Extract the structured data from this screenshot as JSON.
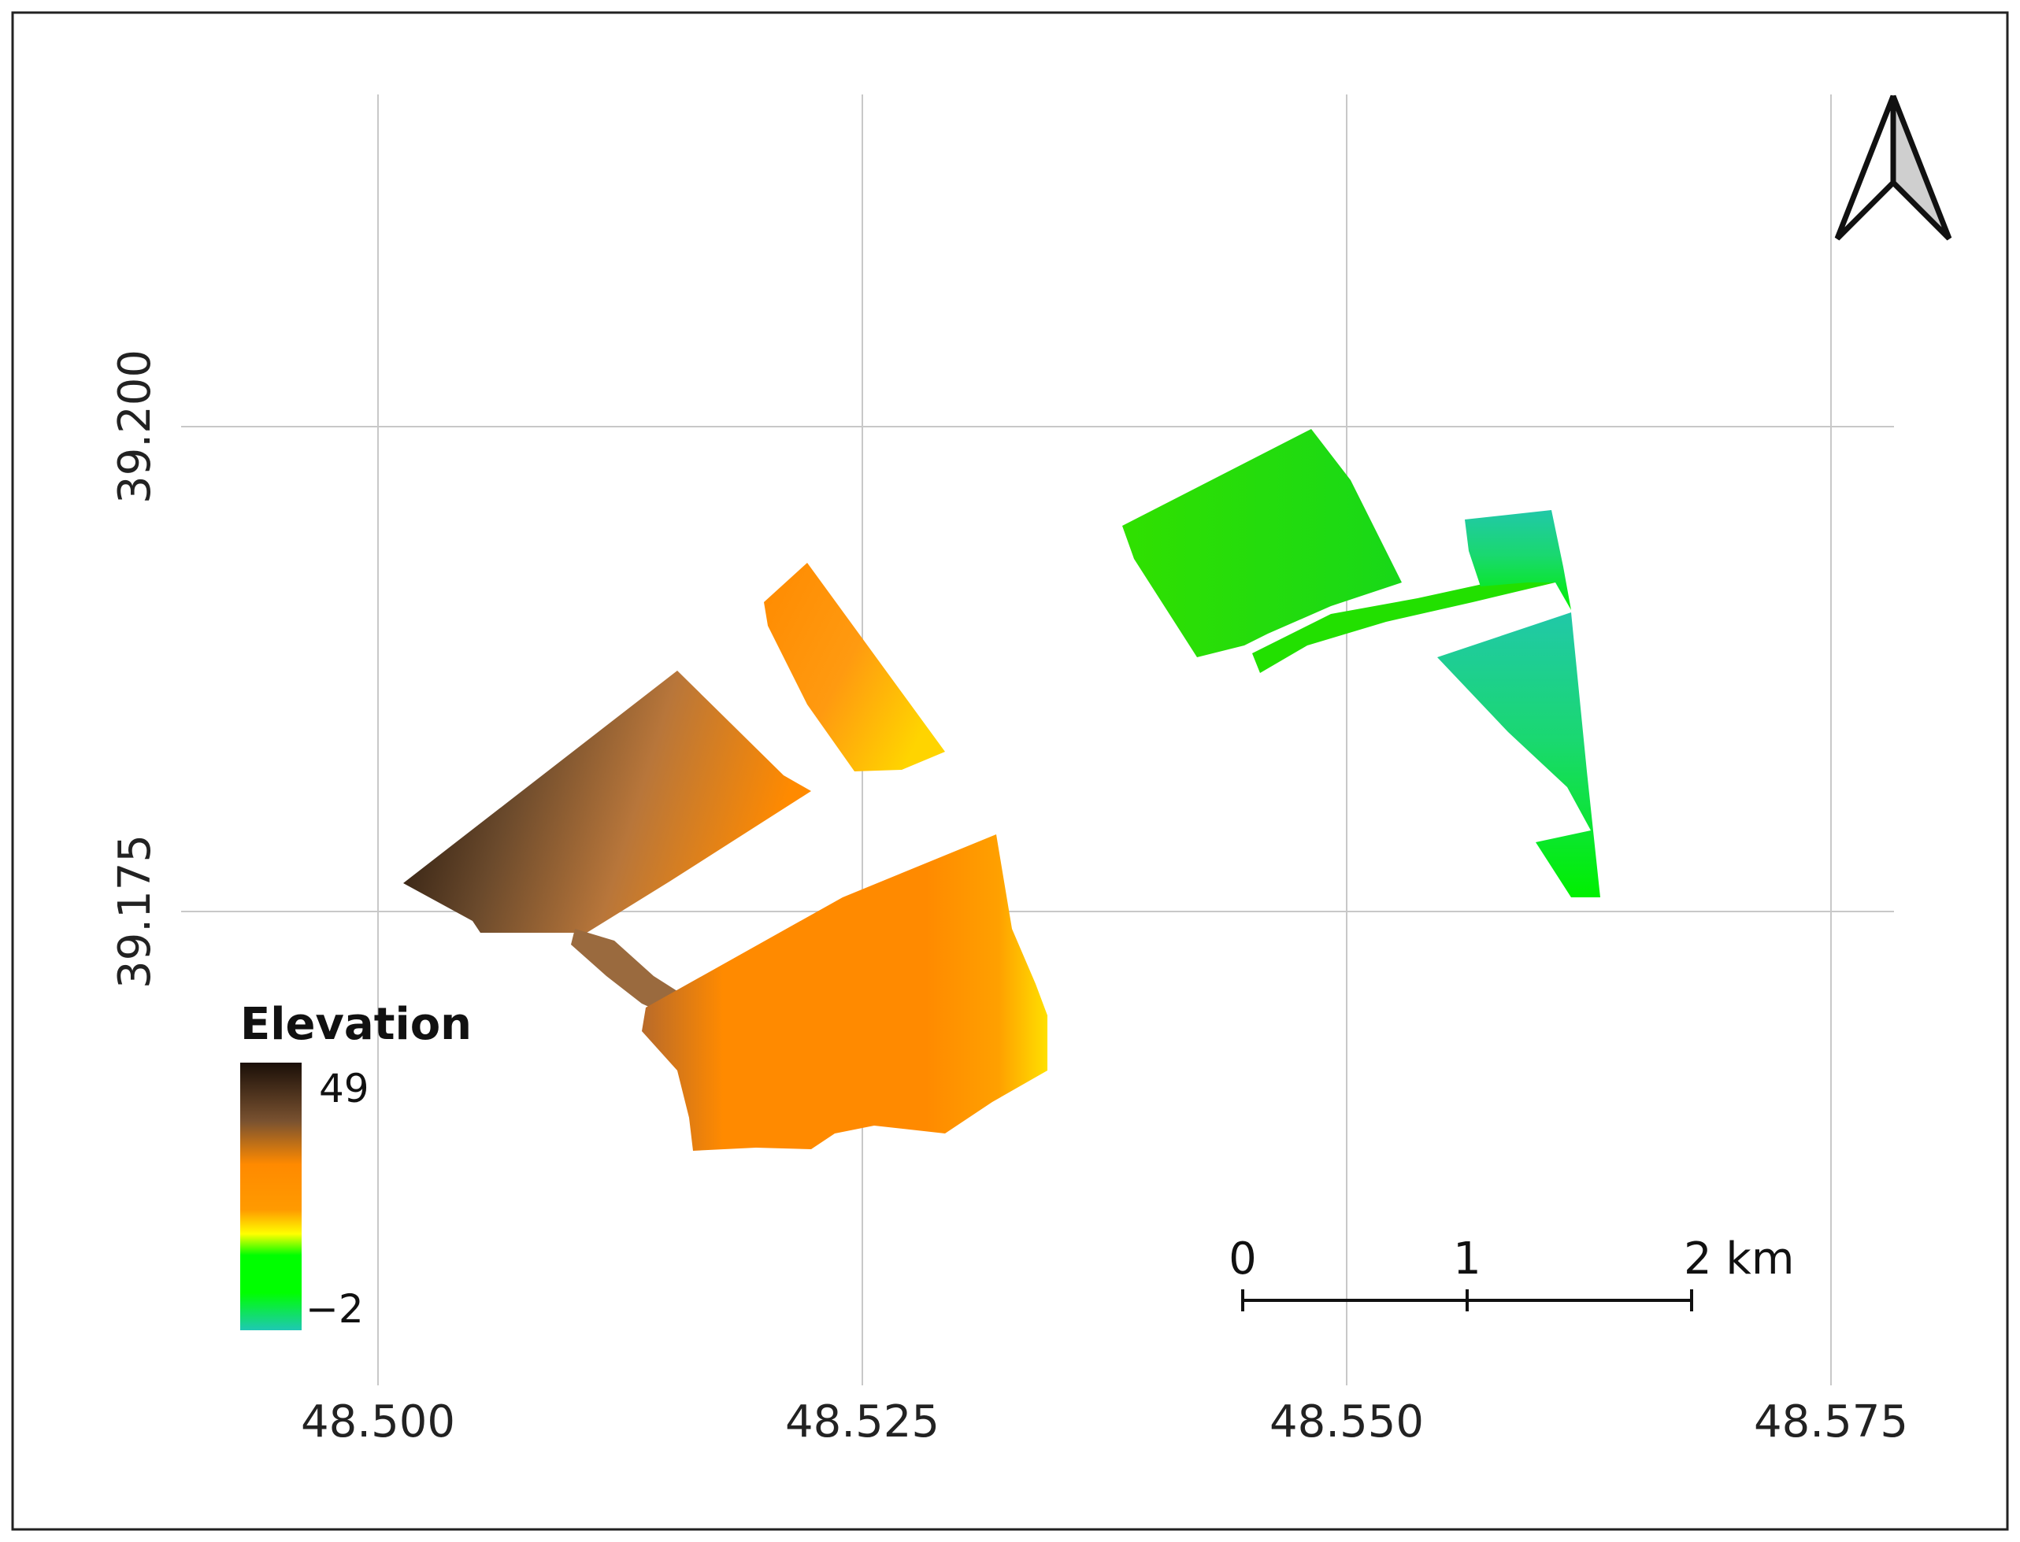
{
  "map": {
    "x_ticks": [
      "48.500",
      "48.525",
      "48.550",
      "48.575"
    ],
    "y_ticks": [
      "39.200",
      "39.175"
    ],
    "grid": true,
    "north_arrow": "north-arrow-icon"
  },
  "legend": {
    "title": "Elevation",
    "max_label": "49",
    "min_label": "−2",
    "colors": [
      "#1a0f08",
      "#6b4a2c",
      "#b07a45",
      "#ff8a00",
      "#ffb200",
      "#ffff00",
      "#00ff00",
      "#1ec8b4"
    ]
  },
  "scale_bar": {
    "labels": [
      "0",
      "1",
      "2 km"
    ]
  },
  "colors": {
    "low_zone": "#22e000",
    "mid_zone": "#ff8a00",
    "high_zone": "#3a2310",
    "teal_zone": "#21c8a8"
  }
}
